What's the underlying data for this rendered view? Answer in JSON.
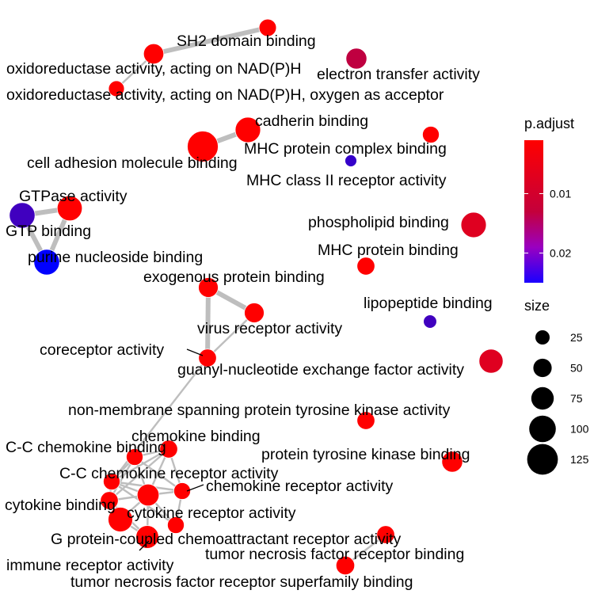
{
  "chart_data": {
    "type": "network",
    "nodes": [
      {
        "id": "sh2",
        "label": "SH2 domain binding",
        "p_adjust": 0.001,
        "size": 20
      },
      {
        "id": "oxnadph",
        "label": "oxidoreductase activity, acting on NAD(P)H",
        "p_adjust": 0.001,
        "size": 32
      },
      {
        "id": "electron",
        "label": "electron transfer activity",
        "p_adjust": 0.007,
        "size": 35
      },
      {
        "id": "oxnadph_o2",
        "label": "oxidoreductase activity, acting on NAD(P)H, oxygen as acceptor",
        "p_adjust": 0.001,
        "size": 15
      },
      {
        "id": "cadherin",
        "label": "cadherin binding",
        "p_adjust": 0.001,
        "size": 60
      },
      {
        "id": "mhc_complex",
        "label": "MHC protein complex binding",
        "p_adjust": 0.001,
        "size": 18
      },
      {
        "id": "cell_adhesion",
        "label": "cell adhesion molecule binding",
        "p_adjust": 0.001,
        "size": 100
      },
      {
        "id": "mhc2",
        "label": "MHC class II receptor activity",
        "p_adjust": 0.02,
        "size": 5
      },
      {
        "id": "gtpase",
        "label": "GTPase activity",
        "p_adjust": 0.001,
        "size": 58
      },
      {
        "id": "gtp",
        "label": "GTP binding",
        "p_adjust": 0.019,
        "size": 62
      },
      {
        "id": "purine",
        "label": "purine nucleoside binding",
        "p_adjust": 0.025,
        "size": 62
      },
      {
        "id": "phospholipid",
        "label": "phospholipid binding",
        "p_adjust": 0.004,
        "size": 60
      },
      {
        "id": "mhc_protein",
        "label": "MHC protein binding",
        "p_adjust": 0.001,
        "size": 22
      },
      {
        "id": "exogenous",
        "label": "exogenous protein binding",
        "p_adjust": 0.001,
        "size": 30
      },
      {
        "id": "virus",
        "label": "virus receptor activity",
        "p_adjust": 0.001,
        "size": 30
      },
      {
        "id": "lipopeptide",
        "label": "lipopeptide binding",
        "p_adjust": 0.019,
        "size": 8
      },
      {
        "id": "coreceptor",
        "label": "coreceptor activity",
        "p_adjust": 0.001,
        "size": 22
      },
      {
        "id": "guanyl",
        "label": "guanyl-nucleotide exchange factor activity",
        "p_adjust": 0.004,
        "size": 52
      },
      {
        "id": "nonmembrane",
        "label": "non-membrane spanning protein tyrosine kinase activity",
        "p_adjust": 0.001,
        "size": 22
      },
      {
        "id": "chemokine",
        "label": "chemokine binding",
        "p_adjust": 0.001,
        "size": 22
      },
      {
        "id": "cc_chemokine_b",
        "label": "C-C chemokine binding",
        "p_adjust": 0.001,
        "size": 18
      },
      {
        "id": "ptk_binding",
        "label": "protein tyrosine kinase binding",
        "p_adjust": 0.001,
        "size": 35
      },
      {
        "id": "cc_chemokine_r",
        "label": "C-C chemokine receptor activity",
        "p_adjust": 0.001,
        "size": 18
      },
      {
        "id": "chemokine_r",
        "label": "chemokine receptor activity",
        "p_adjust": 0.001,
        "size": 18
      },
      {
        "id": "cytokine_b",
        "label": "cytokine binding",
        "p_adjust": 0.001,
        "size": 22
      },
      {
        "id": "cytokine_r",
        "label": "cytokine receptor activity",
        "p_adjust": 0.001,
        "size": 40
      },
      {
        "id": "gpcr_chemo",
        "label": "G protein-coupled chemoattractant receptor activity",
        "p_adjust": 0.001,
        "size": 18
      },
      {
        "id": "immune_r",
        "label": "immune receptor activity",
        "p_adjust": 0.001,
        "size": 45
      },
      {
        "id": "tnfr_b",
        "label": "tumor necrosis factor receptor binding",
        "p_adjust": 0.001,
        "size": 22
      },
      {
        "id": "tnfr_super",
        "label": "tumor necrosis factor receptor superfamily binding",
        "p_adjust": 0.001,
        "size": 25
      },
      {
        "id": "cytokine_b_extra",
        "label": "",
        "p_adjust": 0.001,
        "size": 55
      }
    ],
    "edges": [
      [
        "sh2",
        "oxnadph"
      ],
      [
        "oxnadph",
        "oxnadph_o2"
      ],
      [
        "cell_adhesion",
        "cadherin"
      ],
      [
        "gtpase",
        "gtp"
      ],
      [
        "gtp",
        "purine"
      ],
      [
        "gtpase",
        "purine"
      ],
      [
        "exogenous",
        "virus"
      ],
      [
        "exogenous",
        "coreceptor"
      ],
      [
        "virus",
        "coreceptor"
      ],
      [
        "coreceptor",
        "cc_chemokine_r"
      ],
      [
        "chemokine",
        "cc_chemokine_b"
      ],
      [
        "chemokine",
        "cc_chemokine_r"
      ],
      [
        "chemokine",
        "chemokine_r"
      ],
      [
        "chemokine",
        "cytokine_b"
      ],
      [
        "chemokine",
        "cytokine_r"
      ],
      [
        "cc_chemokine_b",
        "cc_chemokine_r"
      ],
      [
        "cc_chemokine_b",
        "chemokine_r"
      ],
      [
        "cc_chemokine_b",
        "cytokine_b"
      ],
      [
        "cc_chemokine_b",
        "cytokine_r"
      ],
      [
        "cc_chemokine_r",
        "chemokine_r"
      ],
      [
        "cc_chemokine_r",
        "cytokine_r"
      ],
      [
        "cc_chemokine_r",
        "cytokine_b"
      ],
      [
        "cc_chemokine_r",
        "gpcr_chemo"
      ],
      [
        "chemokine_r",
        "cytokine_r"
      ],
      [
        "chemokine_r",
        "gpcr_chemo"
      ],
      [
        "cytokine_b",
        "cytokine_r"
      ],
      [
        "cytokine_b",
        "immune_r"
      ],
      [
        "cytokine_r",
        "immune_r"
      ],
      [
        "cytokine_r",
        "gpcr_chemo"
      ],
      [
        "cytokine_b",
        "cytokine_b_extra"
      ],
      [
        "cytokine_r",
        "cytokine_b_extra"
      ],
      [
        "cytokine_b_extra",
        "immune_r"
      ],
      [
        "tnfr_b",
        "tnfr_super"
      ]
    ],
    "legend": {
      "color_title": "p.adjust",
      "color_ticks": [
        "0.01",
        "0.02"
      ],
      "color_tick_values": [
        0.01,
        0.02
      ],
      "color_range": [
        0.001,
        0.025
      ],
      "color_low": "#ff0000",
      "color_high": "#0000ff",
      "size_title": "size",
      "size_ticks": [
        "25",
        "50",
        "75",
        "100",
        "125"
      ],
      "size_tick_values": [
        25,
        50,
        75,
        100,
        125
      ],
      "position": "right"
    },
    "edge_color": "#bebebe"
  }
}
